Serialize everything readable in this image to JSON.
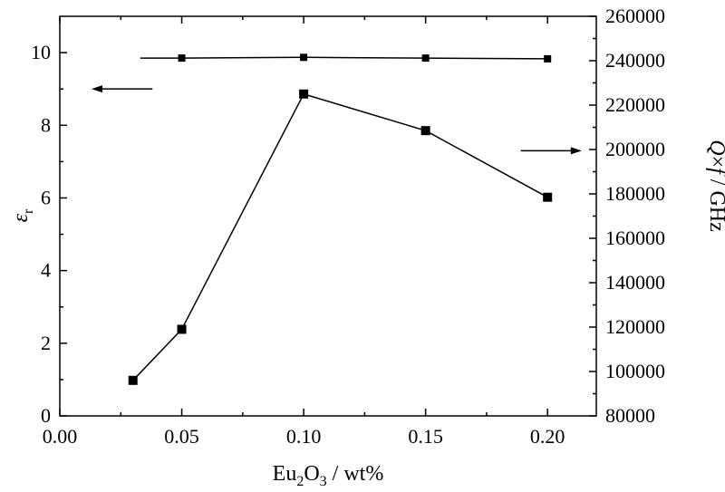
{
  "chart_data": {
    "type": "line",
    "x": [
      0.03,
      0.05,
      0.1,
      0.15,
      0.2
    ],
    "xlim": [
      0.0,
      0.22
    ],
    "xticks": [
      "0.00",
      "0.05",
      "0.10",
      "0.15",
      "0.20"
    ],
    "xlabel": {
      "base": "Eu",
      "sub1": "2",
      "mid": "O",
      "sub2": "3",
      "tail": " / wt%"
    },
    "ylim_left": [
      0,
      11
    ],
    "yticks_left": [
      "0",
      "2",
      "4",
      "6",
      "8",
      "10"
    ],
    "ylabel_left": {
      "base": "ε",
      "sub": "r"
    },
    "ylim_right": [
      80000,
      260000
    ],
    "yticks_right": [
      "80000",
      "100000",
      "120000",
      "140000",
      "160000",
      "180000",
      "200000",
      "220000",
      "240000",
      "260000"
    ],
    "ylabel_right": {
      "q": "Q",
      "times": "×",
      "f": "f",
      "unit": " / GHz"
    },
    "series": [
      {
        "axis": "left",
        "marker": "square-small",
        "x": [
          0.05,
          0.1,
          0.15,
          0.2
        ],
        "values": [
          9.85,
          9.87,
          9.85,
          9.83
        ],
        "line_start_x": 0.033
      },
      {
        "axis": "right",
        "marker": "square-large",
        "x": [
          0.03,
          0.05,
          0.1,
          0.15,
          0.2
        ],
        "values": [
          96000,
          119000,
          225000,
          208500,
          178500
        ]
      }
    ],
    "annotations": [
      {
        "type": "arrow",
        "direction": "left",
        "indicates": "left-axis"
      },
      {
        "type": "arrow",
        "direction": "right",
        "indicates": "right-axis"
      }
    ],
    "grid": false,
    "legend": "none"
  }
}
